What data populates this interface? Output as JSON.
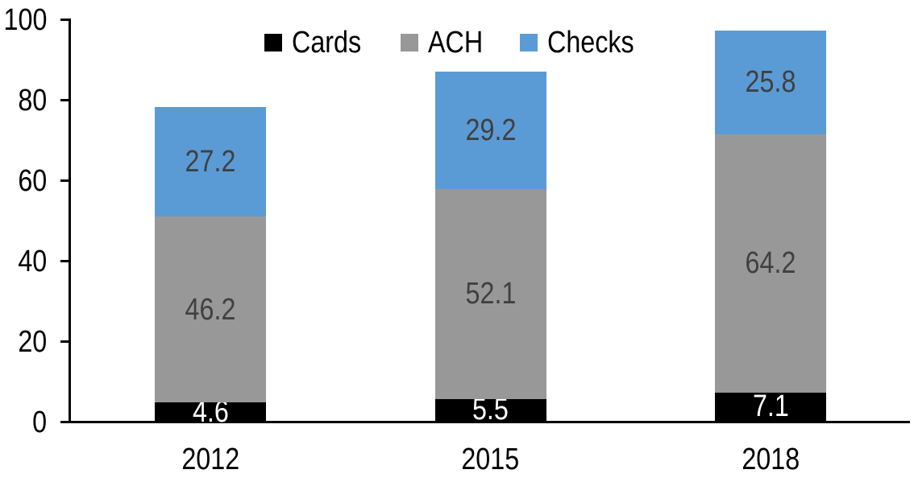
{
  "chart_data": {
    "type": "bar",
    "stacked": true,
    "title": "",
    "xlabel": "",
    "ylabel": "",
    "categories": [
      "2012",
      "2015",
      "2018"
    ],
    "series": [
      {
        "name": "Cards",
        "color": "#000000",
        "label_color": "#ffffff",
        "values": [
          4.6,
          5.5,
          7.1
        ]
      },
      {
        "name": "ACH",
        "color": "#989898",
        "label_color": "#404040",
        "values": [
          46.2,
          52.1,
          64.2
        ]
      },
      {
        "name": "Checks",
        "color": "#5B9BD5",
        "label_color": "#404040",
        "values": [
          27.2,
          29.2,
          25.8
        ]
      }
    ],
    "ylim": [
      0,
      100
    ],
    "yticks": [
      0,
      20,
      40,
      60,
      80,
      100
    ],
    "grid": false,
    "legend_position": "top",
    "data_labels": true,
    "axis_color": "#000000",
    "text_color": "#000000"
  }
}
